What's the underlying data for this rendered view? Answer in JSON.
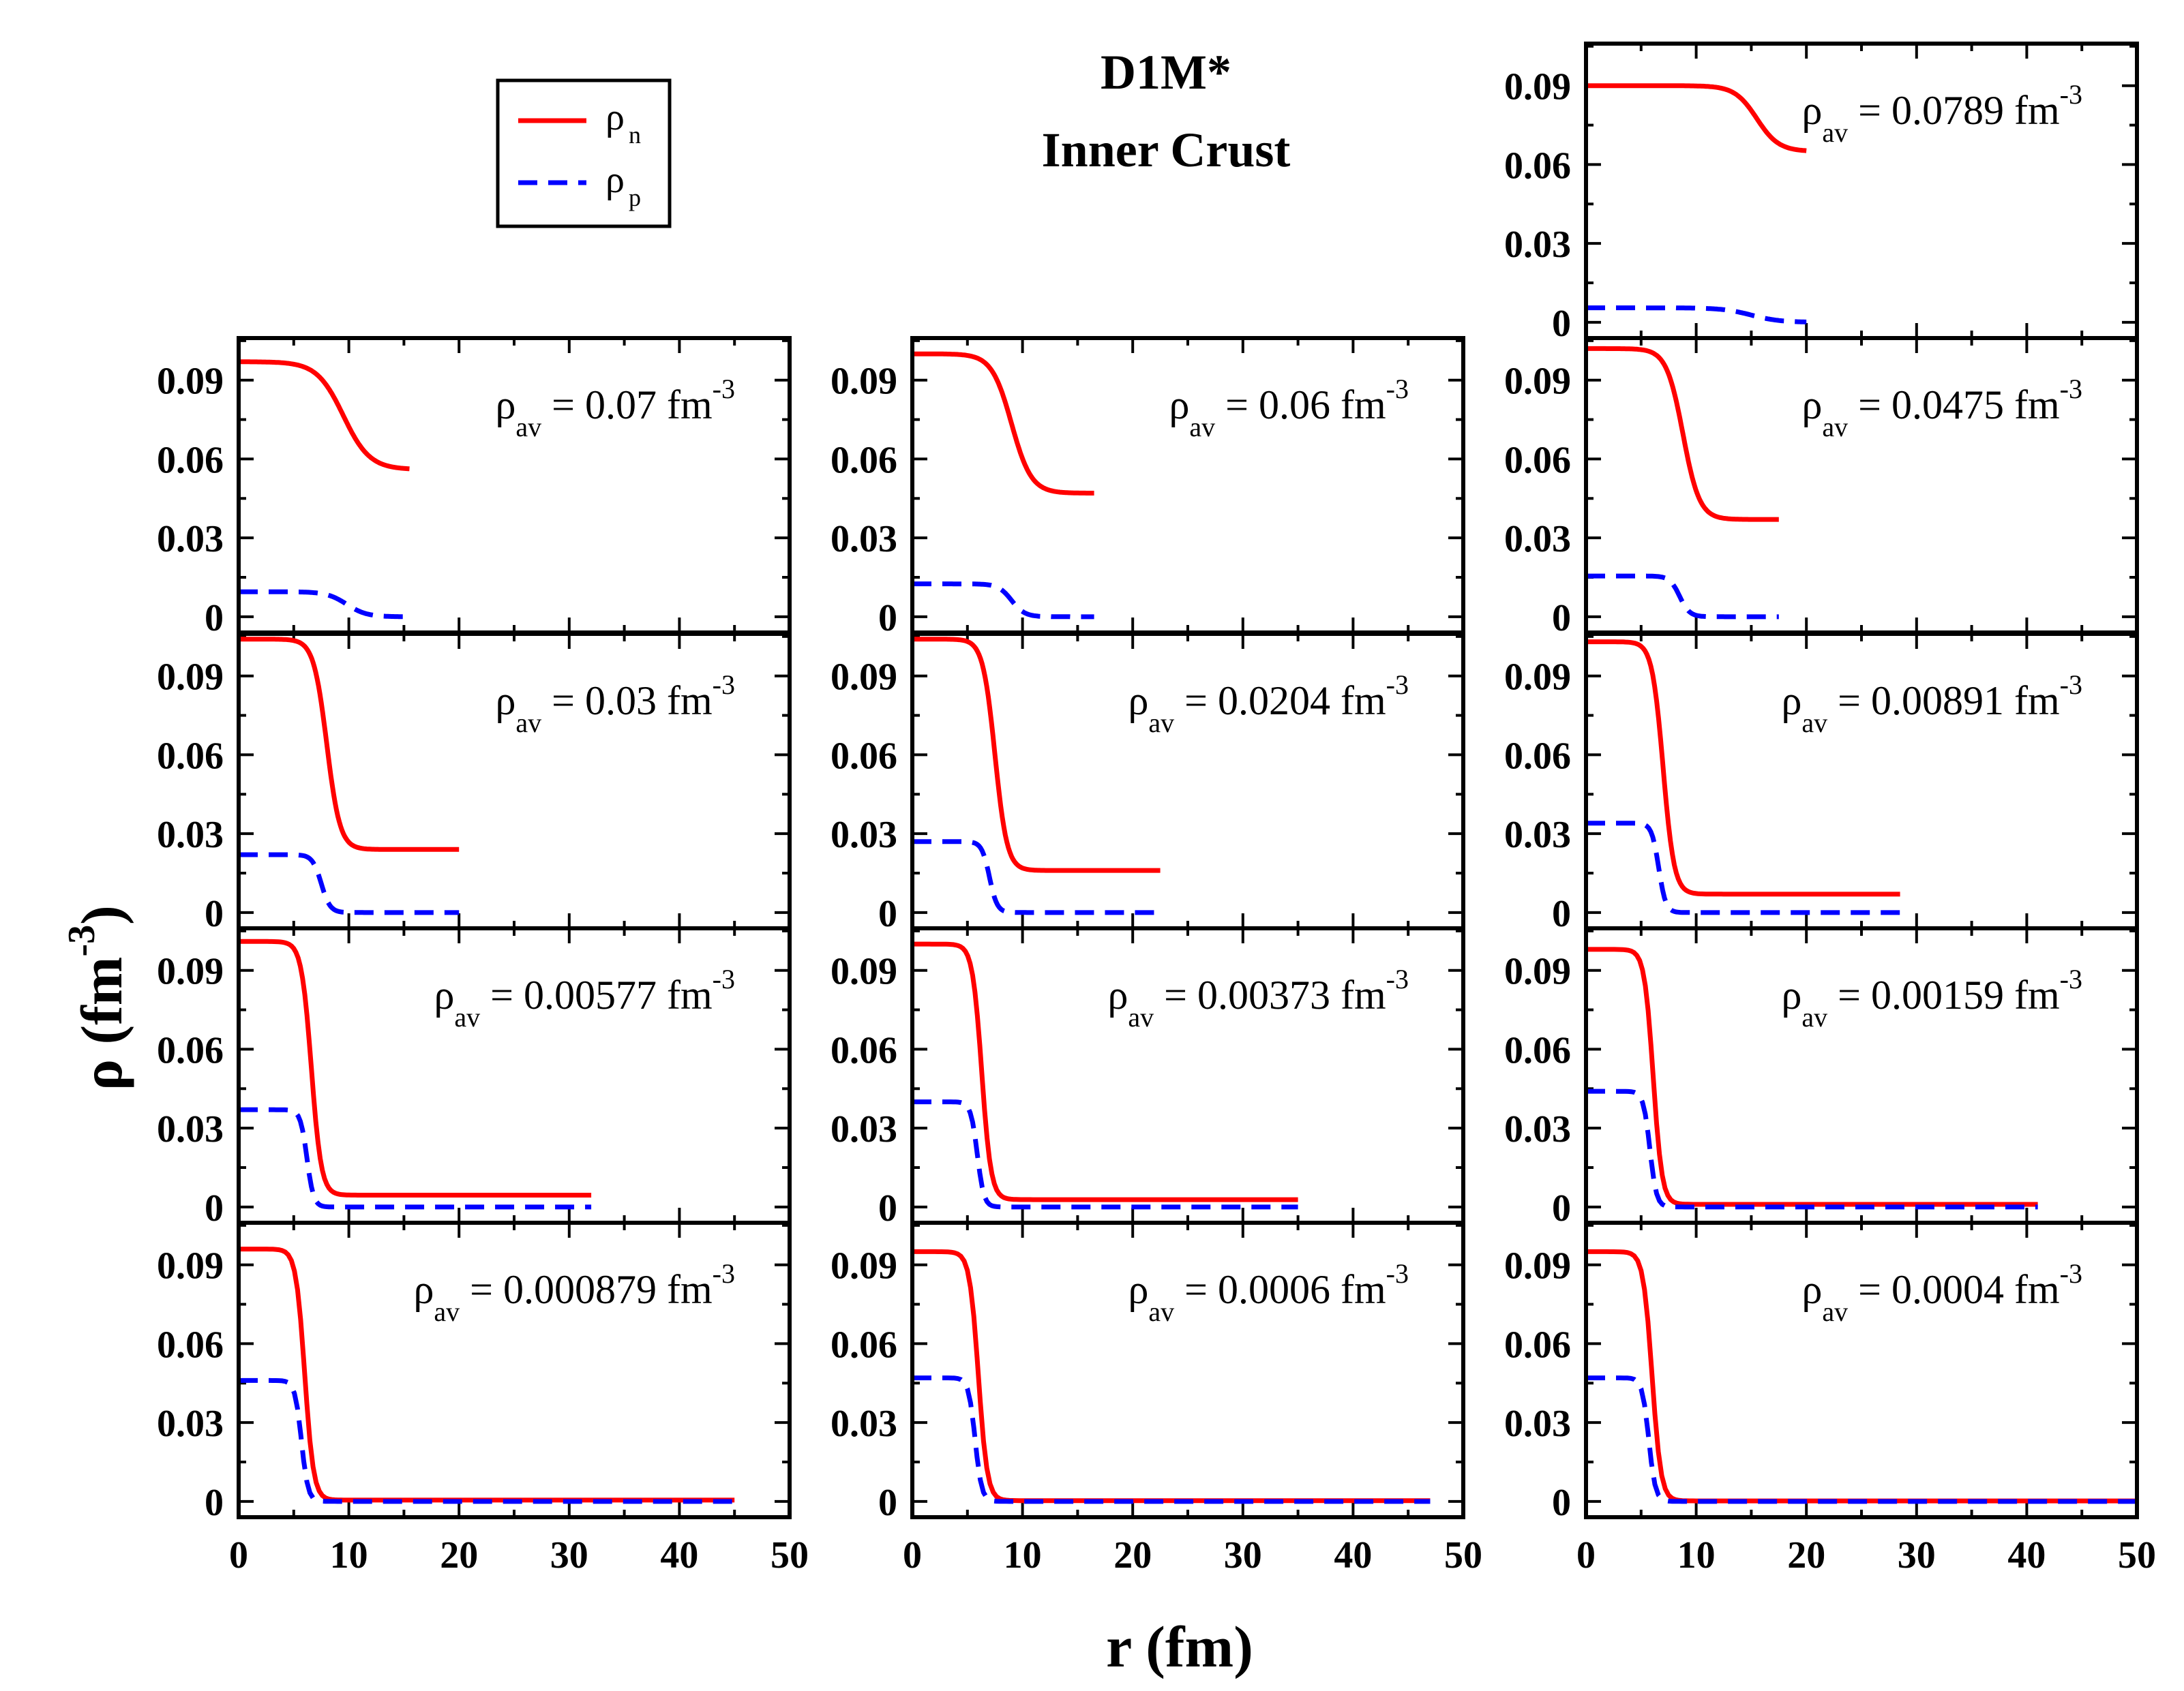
{
  "chart_data": {
    "type": "line",
    "title": "D1M*",
    "subtitle": "Inner Crust",
    "xlabel": "r (fm)",
    "ylabel": "ρ (fm",
    "ylabel_exp": "-3",
    "ylabel_close": ")",
    "xlim": [
      0,
      50
    ],
    "ylim": [
      -0.006,
      0.106
    ],
    "xticks": [
      "0",
      "10",
      "20",
      "30",
      "40",
      "50"
    ],
    "yticks": [
      "0",
      "0.03",
      "0.06",
      "0.09"
    ],
    "legend": {
      "placement": "top-left",
      "entries": [
        {
          "symbol": "ρ",
          "sub": "n",
          "color": "#ff0000",
          "style": "solid"
        },
        {
          "symbol": "ρ",
          "sub": "p",
          "color": "#0000ff",
          "style": "dashed"
        }
      ]
    },
    "label_prefix": "ρ",
    "label_sub": "av",
    "label_unit": "fm",
    "label_exp": "-3",
    "series_colors": {
      "neutron": "#ff0000",
      "proton": "#0000ff"
    },
    "panels": [
      {
        "row": 0,
        "col": 2,
        "rho_av": "0.0789",
        "rmax": 20,
        "neutron": {
          "c": 0.09,
          "out": 0.065,
          "R": 15.5,
          "a": 1.0
        },
        "proton": {
          "c": 0.0055,
          "out": 0.0,
          "R": 15.0,
          "a": 1.3
        }
      },
      {
        "row": 1,
        "col": 0,
        "rho_av": "0.07",
        "rmax": 15.5,
        "neutron": {
          "c": 0.097,
          "out": 0.056,
          "R": 9.5,
          "a": 1.2
        },
        "proton": {
          "c": 0.0095,
          "out": 0.0,
          "R": 9.8,
          "a": 0.9
        }
      },
      {
        "row": 1,
        "col": 1,
        "rho_av": "0.06",
        "rmax": 16.5,
        "neutron": {
          "c": 0.1,
          "out": 0.047,
          "R": 9.0,
          "a": 0.9
        },
        "proton": {
          "c": 0.0125,
          "out": 0.0,
          "R": 9.0,
          "a": 0.6
        }
      },
      {
        "row": 1,
        "col": 2,
        "rho_av": "0.0475",
        "rmax": 17.5,
        "neutron": {
          "c": 0.102,
          "out": 0.037,
          "R": 8.8,
          "a": 0.75
        },
        "proton": {
          "c": 0.0155,
          "out": 0.0,
          "R": 8.5,
          "a": 0.45
        }
      },
      {
        "row": 2,
        "col": 0,
        "rho_av": "0.03",
        "rmax": 20,
        "neutron": {
          "c": 0.104,
          "out": 0.024,
          "R": 8.0,
          "a": 0.6
        },
        "proton": {
          "c": 0.022,
          "out": 0.0,
          "R": 7.5,
          "a": 0.4
        }
      },
      {
        "row": 2,
        "col": 1,
        "rho_av": "0.0204",
        "rmax": 22.5,
        "neutron": {
          "c": 0.104,
          "out": 0.016,
          "R": 7.5,
          "a": 0.55
        },
        "proton": {
          "c": 0.027,
          "out": 0.0,
          "R": 7.0,
          "a": 0.35
        }
      },
      {
        "row": 2,
        "col": 2,
        "rho_av": "0.00891",
        "rmax": 28.5,
        "neutron": {
          "c": 0.103,
          "out": 0.007,
          "R": 7.0,
          "a": 0.5
        },
        "proton": {
          "c": 0.034,
          "out": 0.0,
          "R": 6.6,
          "a": 0.32
        }
      },
      {
        "row": 3,
        "col": 0,
        "rho_av": "0.00577",
        "rmax": 32,
        "neutron": {
          "c": 0.101,
          "out": 0.0045,
          "R": 6.6,
          "a": 0.45
        },
        "proton": {
          "c": 0.037,
          "out": 0.0,
          "R": 6.2,
          "a": 0.3
        }
      },
      {
        "row": 3,
        "col": 1,
        "rho_av": "0.00373",
        "rmax": 35,
        "neutron": {
          "c": 0.1,
          "out": 0.0028,
          "R": 6.3,
          "a": 0.42
        },
        "proton": {
          "c": 0.04,
          "out": 0.0,
          "R": 5.9,
          "a": 0.3
        }
      },
      {
        "row": 3,
        "col": 2,
        "rho_av": "0.00159",
        "rmax": 41,
        "neutron": {
          "c": 0.098,
          "out": 0.001,
          "R": 6.1,
          "a": 0.4
        },
        "proton": {
          "c": 0.044,
          "out": 0.0,
          "R": 5.8,
          "a": 0.3
        }
      },
      {
        "row": 4,
        "col": 0,
        "rho_av": "0.000879",
        "rmax": 45,
        "neutron": {
          "c": 0.096,
          "out": 0.0005,
          "R": 6.0,
          "a": 0.4
        },
        "proton": {
          "c": 0.046,
          "out": 0.0,
          "R": 5.7,
          "a": 0.3
        }
      },
      {
        "row": 4,
        "col": 1,
        "rho_av": "0.0006",
        "rmax": 47,
        "neutron": {
          "c": 0.095,
          "out": 0.0003,
          "R": 6.0,
          "a": 0.4
        },
        "proton": {
          "c": 0.047,
          "out": 0.0,
          "R": 5.7,
          "a": 0.3
        }
      },
      {
        "row": 4,
        "col": 2,
        "rho_av": "0.0004",
        "rmax": 50,
        "neutron": {
          "c": 0.095,
          "out": 0.0002,
          "R": 6.0,
          "a": 0.4
        },
        "proton": {
          "c": 0.047,
          "out": 0.0,
          "R": 5.7,
          "a": 0.3
        }
      }
    ]
  }
}
